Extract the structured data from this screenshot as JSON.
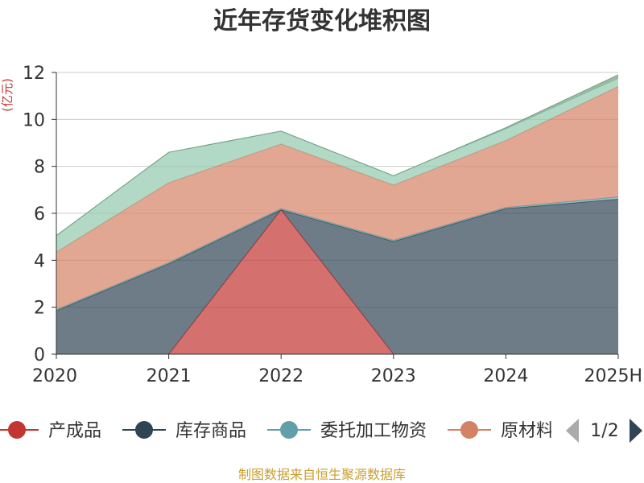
{
  "chart_data": {
    "type": "area",
    "stacked": true,
    "title": "近年存货变化堆积图",
    "ylabel": "(亿元)",
    "categories": [
      "2020",
      "2021",
      "2022",
      "2023",
      "2024",
      "2025H"
    ],
    "ylim": [
      0,
      12
    ],
    "yticks": [
      0,
      2,
      4,
      6,
      8,
      10,
      12
    ],
    "grid": true,
    "series": [
      {
        "name": "产成品",
        "color": "#c23531",
        "values": [
          0,
          0,
          6.15,
          0,
          0,
          0
        ]
      },
      {
        "name": "库存商品",
        "color": "#2f4554",
        "values": [
          1.85,
          3.85,
          0,
          4.8,
          6.2,
          6.6
        ]
      },
      {
        "name": "委托加工物资",
        "color": "#61a0a8",
        "values": [
          0.05,
          0.05,
          0.05,
          0.05,
          0.05,
          0.1
        ]
      },
      {
        "name": "原材料",
        "color": "#d48265",
        "values": [
          2.45,
          3.4,
          2.75,
          2.35,
          2.85,
          4.7
        ]
      },
      {
        "name": "",
        "color": "#91c7ae",
        "values": [
          0.7,
          1.3,
          0.55,
          0.4,
          0.5,
          0.35
        ]
      },
      {
        "name": "",
        "color": "#749f83",
        "values": [
          0,
          0,
          0,
          0,
          0.05,
          0.15
        ]
      }
    ],
    "legend": {
      "position": "bottom",
      "visible_items": [
        "产成品",
        "库存商品",
        "委托加工物资",
        "原材料"
      ],
      "page": "1/2"
    },
    "source_note": "制图数据来自恒生聚源数据库"
  }
}
